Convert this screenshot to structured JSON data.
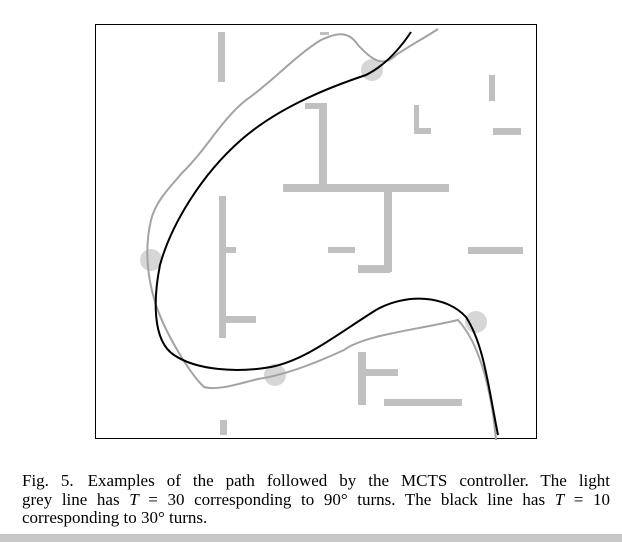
{
  "figure": {
    "wall_color": "#c0c0c0",
    "waypoint_color": "#d6d6d6",
    "light_path_color": "#a3a3a3",
    "dark_path_color": "#000000"
  },
  "caption": {
    "label": "Fig. 5.",
    "line1": "Examples of the path followed by the MCTS controller. The light",
    "line2_a": "grey line has ",
    "line2_var": "T",
    "line2_b": " = 30 corresponding to 90° turns. The black line has ",
    "line2_var2": "T",
    "line2_c": " = 10",
    "line3": "corresponding to 30° turns."
  }
}
